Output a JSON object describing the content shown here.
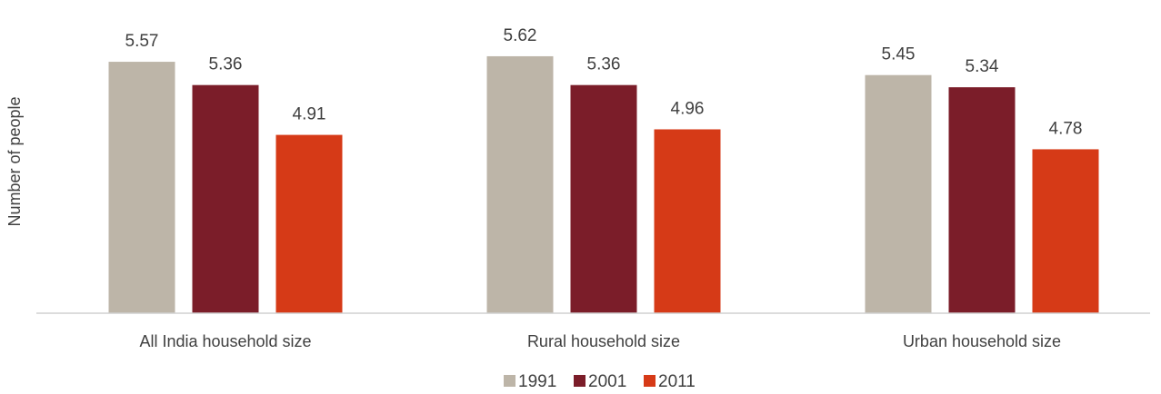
{
  "chart_data": {
    "type": "bar",
    "title": "",
    "xlabel": "",
    "ylabel": "Number of people",
    "categories": [
      "All India household size",
      "Rural household size",
      "Urban household size"
    ],
    "series": [
      {
        "name": "1991",
        "color": "#bdb5a8",
        "values": [
          5.57,
          5.62,
          5.45
        ]
      },
      {
        "name": "2001",
        "color": "#7b1d29",
        "values": [
          5.36,
          5.36,
          5.34
        ]
      },
      {
        "name": "2011",
        "color": "#d63a17",
        "values": [
          4.91,
          4.96,
          4.78
        ]
      }
    ],
    "ylim": [
      3.3,
      5.7
    ],
    "grid": false,
    "legend": "bottom-center",
    "data_labels": true
  }
}
